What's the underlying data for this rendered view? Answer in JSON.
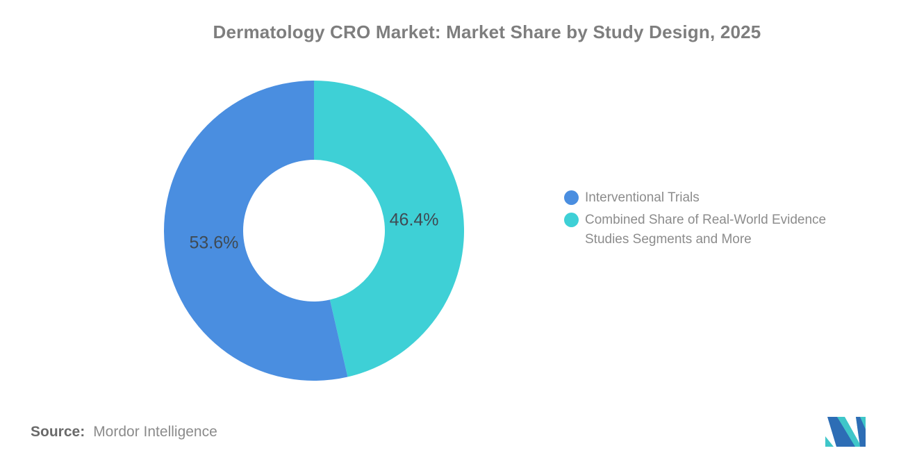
{
  "title": {
    "text": "Dermatology CRO Market: Market Share by Study Design, 2025"
  },
  "chart_data": {
    "type": "pie",
    "subtype": "donut",
    "title": "Dermatology CRO Market: Market Share by Study Design, 2025",
    "hole_ratio": 0.47,
    "start_angle": "second slice (teal) begins at 12 o'clock and sweeps clockwise",
    "slices": [
      {
        "label": "Interventional Trials",
        "value_pct": 53.6,
        "data_label": "53.6%",
        "color": "#4a8ee0"
      },
      {
        "label": "Combined Share of Real-World Evidence Studies Segments and More",
        "value_pct": 46.4,
        "data_label": "46.4%",
        "color": "#3ed0d6"
      }
    ],
    "legend_position": "right",
    "grid": false
  },
  "legend": {
    "items": [
      {
        "label": "Interventional Trials",
        "color": "#4a8ee0"
      },
      {
        "label": "Combined Share of Real-World Evidence\nStudies Segments and More",
        "color": "#3ed0d6"
      }
    ]
  },
  "source": {
    "prefix": "Source:",
    "text": "Mordor Intelligence"
  },
  "colors": {
    "title_text": "#7e7e7e",
    "legend_text": "#8c8c8c",
    "data_label": "#3f4a53",
    "source_prefix": "#6a6a6a",
    "source_text": "#8b8b8b",
    "logo_navy": "#2d6db5",
    "logo_teal": "#3fc6c9"
  }
}
